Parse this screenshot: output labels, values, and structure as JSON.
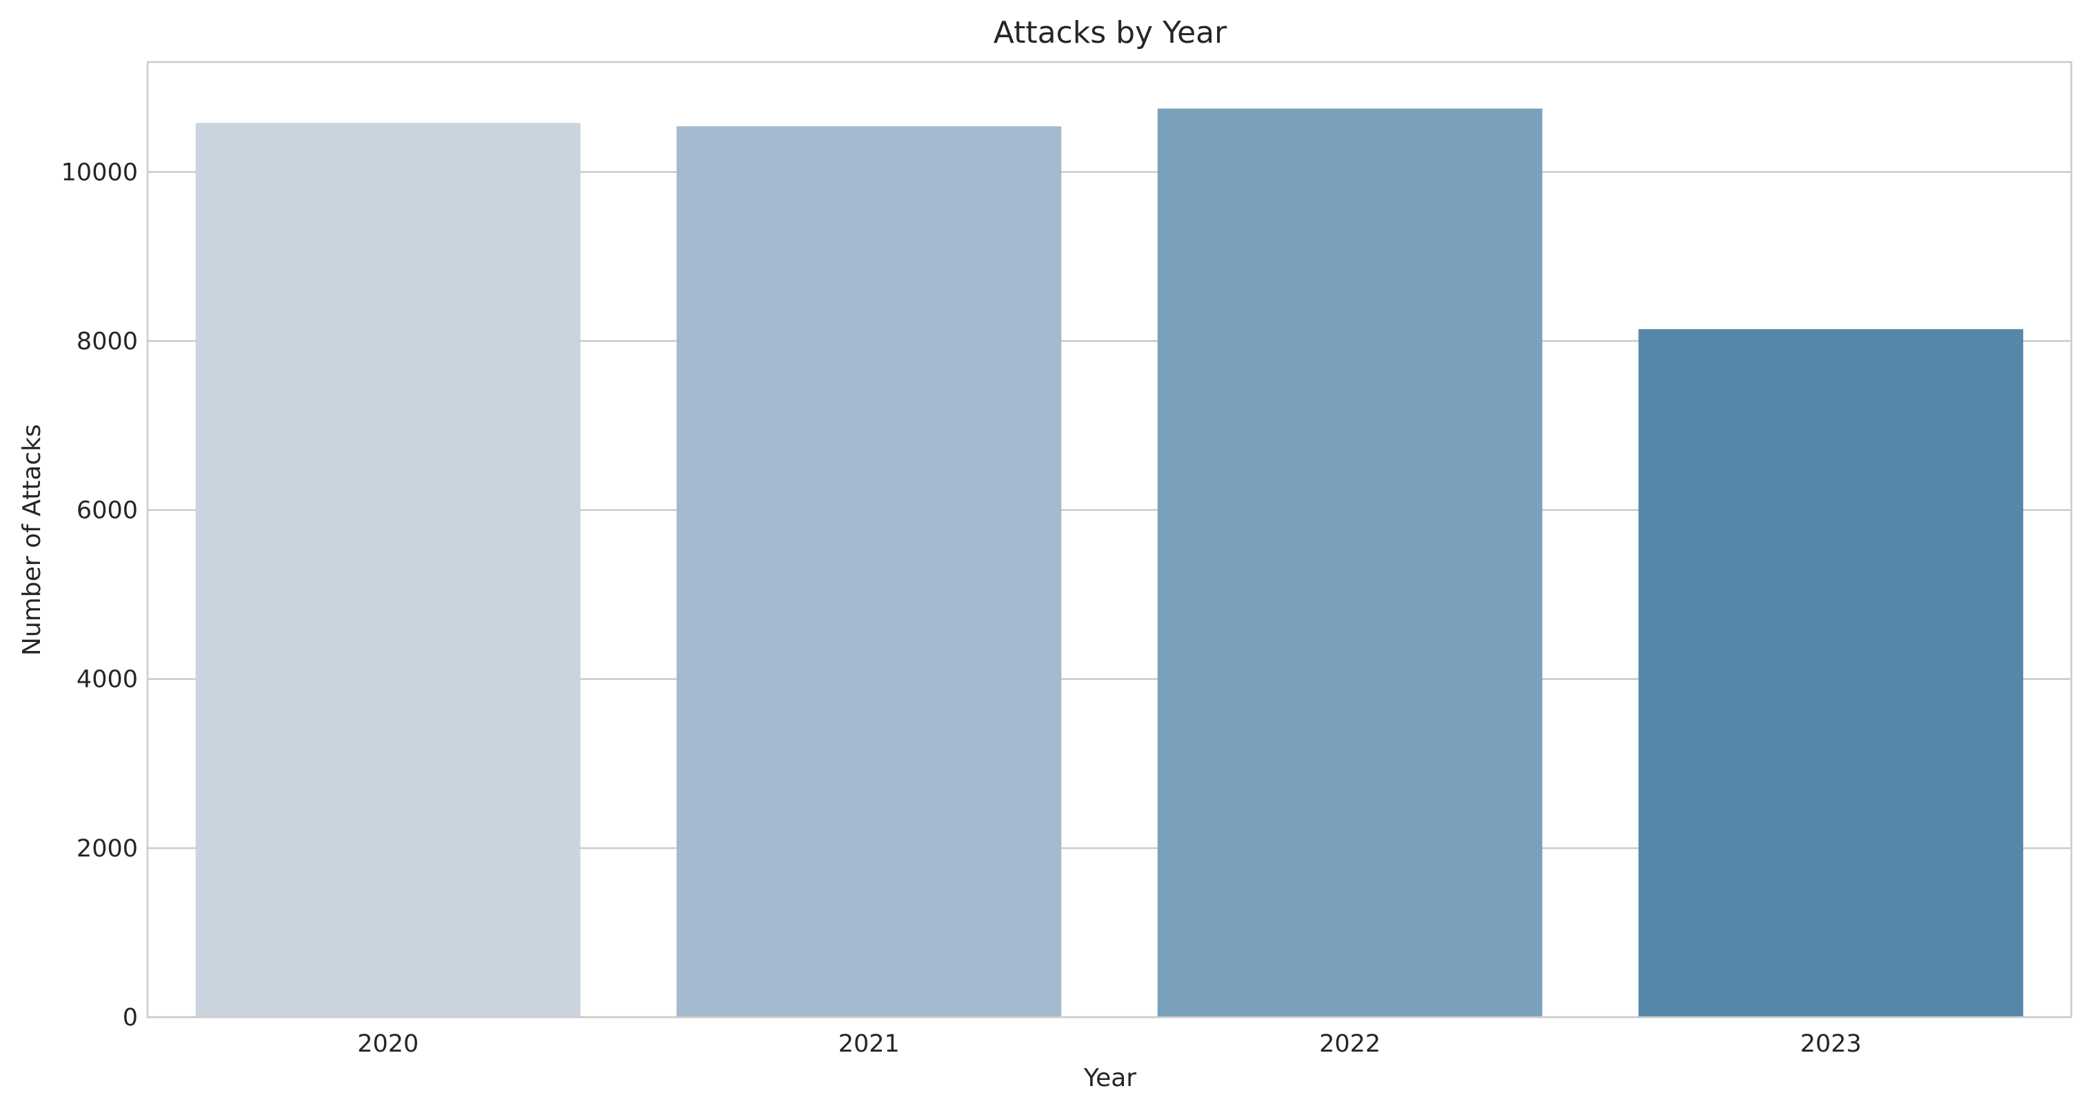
{
  "chart_data": {
    "type": "bar",
    "title": "Attacks by Year",
    "xlabel": "Year",
    "ylabel": "Number of Attacks",
    "categories": [
      "2020",
      "2021",
      "2022",
      "2023"
    ],
    "values": [
      10580,
      10540,
      10750,
      8140
    ],
    "colors": [
      "#c9d4de",
      "#a3b9cd",
      "#79a1bc",
      "#5687a9"
    ],
    "ylim": [
      0,
      11300
    ],
    "yticks": [
      0,
      2000,
      4000,
      6000,
      8000,
      10000
    ],
    "ytick_labels": [
      "0",
      "2000",
      "4000",
      "6000",
      "8000",
      "10000"
    ],
    "grid": "horizontal",
    "legend": "none"
  }
}
